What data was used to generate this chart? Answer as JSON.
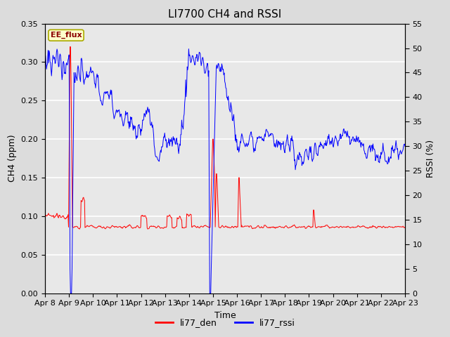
{
  "title": "LI7700 CH4 and RSSI",
  "xlabel": "Time",
  "ylabel_left": "CH4 (ppm)",
  "ylabel_right": "RSSI (%)",
  "ylim_left": [
    0.0,
    0.35
  ],
  "ylim_right": [
    0,
    55
  ],
  "yticks_left": [
    0.0,
    0.05,
    0.1,
    0.15,
    0.2,
    0.25,
    0.3,
    0.35
  ],
  "yticks_right": [
    0,
    5,
    10,
    15,
    20,
    25,
    30,
    35,
    40,
    45,
    50,
    55
  ],
  "xtick_labels": [
    "Apr 8",
    "Apr 9",
    "Apr 10",
    "Apr 11",
    "Apr 12",
    "Apr 13",
    "Apr 14",
    "Apr 15",
    "Apr 16",
    "Apr 17",
    "Apr 18",
    "Apr 19",
    "Apr 20",
    "Apr 21",
    "Apr 22",
    "Apr 23"
  ],
  "color_ch4": "#FF0000",
  "color_rssi": "#0000FF",
  "bg_color": "#DCDCDC",
  "plot_bg_color": "#E8E8E8",
  "annotation_text": "EE_flux",
  "annotation_bg": "#FFFFCC",
  "annotation_border": "#AAAA00",
  "legend_labels": [
    "li77_den",
    "li77_rssi"
  ],
  "title_fontsize": 11,
  "label_fontsize": 9,
  "tick_fontsize": 8
}
